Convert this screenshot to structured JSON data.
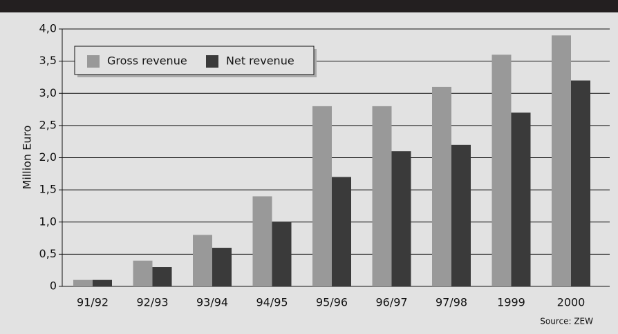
{
  "chart_data": {
    "type": "bar",
    "ylabel": "Million Euro",
    "source": "Source: ZEW",
    "categories": [
      "91/92",
      "92/93",
      "93/94",
      "94/95",
      "95/96",
      "96/97",
      "97/98",
      "1999",
      "2000"
    ],
    "series": [
      {
        "name": "Gross revenue",
        "color": "#999999",
        "values": [
          0.1,
          0.4,
          0.8,
          1.4,
          2.8,
          2.8,
          3.1,
          3.6,
          3.9
        ]
      },
      {
        "name": "Net revenue",
        "color": "#3a3a3a",
        "values": [
          0.1,
          0.3,
          0.6,
          1.0,
          1.7,
          2.1,
          2.2,
          2.7,
          3.2
        ]
      }
    ],
    "ylim": [
      0,
      4
    ],
    "yticks": [
      0,
      {
        "value": 0.5,
        "label": "0,5"
      },
      {
        "value": 1,
        "label": "1,0"
      },
      {
        "value": 1.5,
        "label": "1,5"
      },
      {
        "value": 2,
        "label": "2,0"
      },
      {
        "value": 2.5,
        "label": "2,5"
      },
      {
        "value": 3,
        "label": "3,0"
      },
      {
        "value": 3.5,
        "label": "3,5"
      },
      {
        "value": 4,
        "label": "4,0"
      }
    ],
    "grid": true,
    "legend": "top-left"
  }
}
